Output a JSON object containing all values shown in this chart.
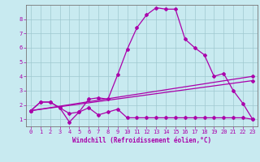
{
  "title": "",
  "xlabel": "Windchill (Refroidissement éolien,°C)",
  "ylabel": "",
  "background_color": "#c8eaf0",
  "line_color": "#aa00aa",
  "xlim": [
    -0.5,
    23.5
  ],
  "ylim": [
    0.5,
    9.0
  ],
  "xticks": [
    0,
    1,
    2,
    3,
    4,
    5,
    6,
    7,
    8,
    9,
    10,
    11,
    12,
    13,
    14,
    15,
    16,
    17,
    18,
    19,
    20,
    21,
    22,
    23
  ],
  "yticks": [
    1,
    2,
    3,
    4,
    5,
    6,
    7,
    8
  ],
  "grid_color": "#9fc8d0",
  "series1_x": [
    0,
    1,
    2,
    3,
    4,
    5,
    6,
    7,
    8,
    9,
    10,
    11,
    12,
    13,
    14,
    15,
    16,
    17,
    18,
    19,
    20,
    21,
    22,
    23
  ],
  "series1_y": [
    1.6,
    2.2,
    2.2,
    1.8,
    0.8,
    1.5,
    1.8,
    1.3,
    1.5,
    1.7,
    1.1,
    1.1,
    1.1,
    1.1,
    1.1,
    1.1,
    1.1,
    1.1,
    1.1,
    1.1,
    1.1,
    1.1,
    1.1,
    1.0
  ],
  "series2_x": [
    0,
    1,
    2,
    3,
    4,
    5,
    6,
    7,
    8,
    9,
    10,
    11,
    12,
    13,
    14,
    15,
    16,
    17,
    18,
    19,
    20,
    21,
    22,
    23
  ],
  "series2_y": [
    1.6,
    2.2,
    2.2,
    1.8,
    1.4,
    1.5,
    2.4,
    2.5,
    2.4,
    4.1,
    5.9,
    7.4,
    8.3,
    8.8,
    8.7,
    8.7,
    6.6,
    6.0,
    5.5,
    4.0,
    4.2,
    3.0,
    2.1,
    1.0
  ],
  "series3_x": [
    0,
    23
  ],
  "series3_y": [
    1.6,
    3.7
  ],
  "series4_x": [
    0,
    23
  ],
  "series4_y": [
    1.6,
    4.0
  ],
  "xlabel_fontsize": 5.5,
  "tick_fontsize": 5.0,
  "linewidth": 0.9,
  "markersize": 2.0
}
